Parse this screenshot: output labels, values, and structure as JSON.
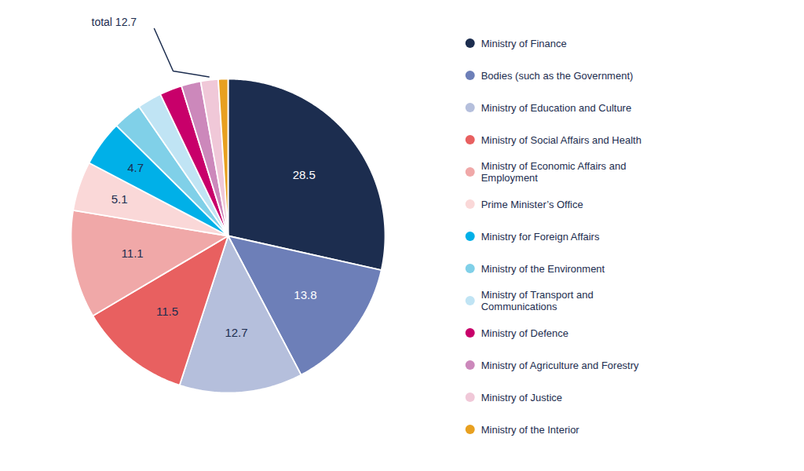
{
  "chart_data": {
    "type": "pie",
    "categories": [
      "Ministry of Finance",
      "Bodies (such as the Government)",
      "Ministry of Education and Culture",
      "Ministry of Social Affairs and Health",
      "Ministry of Economic Affairs and\nEmployment",
      "Prime Minister’s Office",
      "Ministry for Foreign Affairs",
      "Ministry of the Environment",
      "Ministry of Transport and\nCommunications",
      "Ministry of Defence",
      "Ministry of Agriculture and Forestry",
      "Ministry of Justice",
      "Ministry of the Interior"
    ],
    "values": [
      28.5,
      13.8,
      12.7,
      11.5,
      11.1,
      5.1,
      4.7,
      3.0,
      2.5,
      2.3,
      2.0,
      1.8,
      1.0
    ],
    "colors": [
      "#1c2d4f",
      "#6d7fb8",
      "#b5bfdc",
      "#e86060",
      "#f0a8a8",
      "#fad8d8",
      "#00b0e8",
      "#80d0e8",
      "#c0e4f4",
      "#c8006a",
      "#cc88bb",
      "#f0c8d8",
      "#e8a020"
    ],
    "data_labels": true,
    "value_labels": [
      "28.5",
      "13.8",
      "12.7",
      "11.5",
      "11.1",
      "5.1",
      "4.7",
      null,
      null,
      null,
      null,
      null,
      null
    ],
    "legend": "right",
    "annotations": [
      {
        "text": "total 12.7",
        "category": "Ministry of Justice"
      }
    ]
  }
}
